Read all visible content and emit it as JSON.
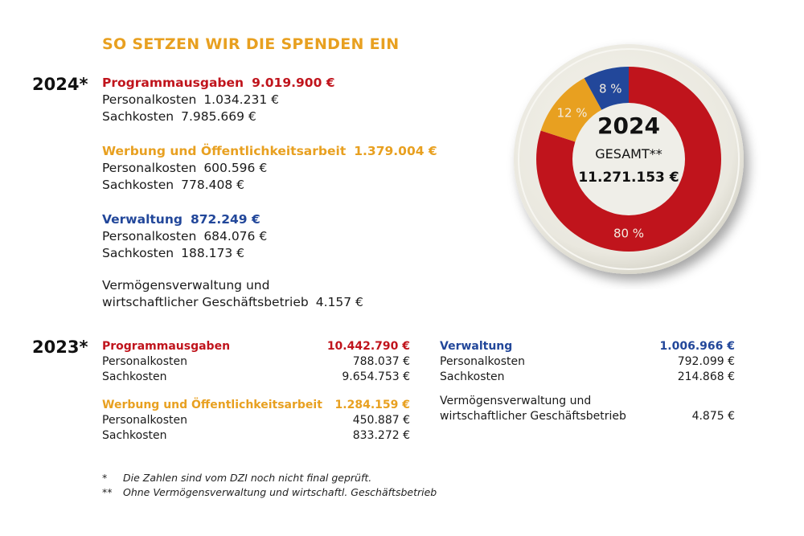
{
  "colors": {
    "programm": "#c0141c",
    "werbung": "#e8a020",
    "verwaltung": "#22479a",
    "title": "#e8a020"
  },
  "title": "SO SETZEN WIR DIE SPENDEN EIN",
  "y2024": {
    "year": "2024*",
    "programm": {
      "label": "Programmausgaben",
      "amount": "9.019.900 €",
      "items": [
        {
          "label": "Personalkosten",
          "value": "1.034.231 €"
        },
        {
          "label": "Sachkosten",
          "value": "7.985.669 €"
        }
      ]
    },
    "werbung": {
      "label": "Werbung und Öffentlichkeitsarbeit",
      "amount": "1.379.004 €",
      "items": [
        {
          "label": "Personalkosten",
          "value": "600.596 €"
        },
        {
          "label": "Sachkosten",
          "value": "778.408 €"
        }
      ]
    },
    "verwaltung": {
      "label": "Verwaltung",
      "amount": "872.249 €",
      "items": [
        {
          "label": "Personalkosten",
          "value": "684.076 €"
        },
        {
          "label": "Sachkosten",
          "value": "188.173 €"
        }
      ]
    },
    "vermoegen": {
      "line1": "Vermögensverwaltung und",
      "line2": "wirtschaftlicher Geschäftsbetrieb",
      "value": "4.157 €"
    }
  },
  "y2023": {
    "year": "2023*",
    "programm": {
      "label": "Programmausgaben",
      "amount": "10.442.790 €",
      "items": [
        {
          "label": "Personalkosten",
          "value": "788.037 €"
        },
        {
          "label": "Sachkosten",
          "value": "9.654.753 €"
        }
      ]
    },
    "werbung": {
      "label": "Werbung und Öffentlichkeitsarbeit",
      "amount": "1.284.159 €",
      "items": [
        {
          "label": "Personalkosten",
          "value": "450.887 €"
        },
        {
          "label": "Sachkosten",
          "value": "833.272 €"
        }
      ]
    },
    "verwaltung": {
      "label": "Verwaltung",
      "amount": "1.006.966 €",
      "items": [
        {
          "label": "Personalkosten",
          "value": "792.099 €"
        },
        {
          "label": "Sachkosten",
          "value": "214.868 €"
        }
      ]
    },
    "vermoegen": {
      "line1": "Vermögensverwaltung und",
      "line2": "wirtschaftlicher Geschäftsbetrieb",
      "value": "4.875 €"
    }
  },
  "footnotes": [
    {
      "mark": "*",
      "text": "Die Zahlen sind vom DZI noch nicht final geprüft."
    },
    {
      "mark": "**",
      "text": "Ohne Vermögensverwaltung und wirtschaftl. Geschäftsbetrieb"
    }
  ],
  "chart_data": {
    "type": "pie",
    "title": "2024",
    "center_label": "GESAMT**",
    "center_value": "11.271.153 €",
    "slices": [
      {
        "name": "Programmausgaben",
        "value": 80,
        "label": "80 %",
        "color": "#c0141c"
      },
      {
        "name": "Werbung und Öffentlichkeitsarbeit",
        "value": 12,
        "label": "12 %",
        "color": "#e8a020"
      },
      {
        "name": "Verwaltung",
        "value": 8,
        "label": "8 %",
        "color": "#22479a"
      }
    ]
  }
}
